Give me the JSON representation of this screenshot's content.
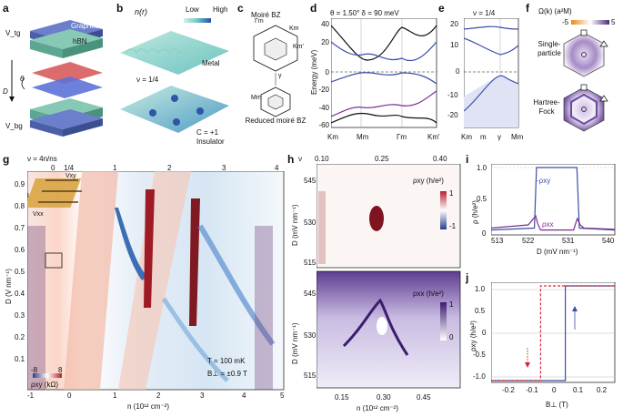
{
  "panel_labels": [
    "a",
    "b",
    "c",
    "d",
    "e",
    "f",
    "g",
    "h",
    "i",
    "j"
  ],
  "a": {
    "top_label": "V_tg",
    "bottom_label": "V_bg",
    "graphite": "Graphite",
    "hbn": "hBN",
    "theta": "θ",
    "D": "D"
  },
  "b": {
    "title": "n(r)",
    "low": "Low",
    "high": "High",
    "metal": "Metal",
    "nu": "ν = 1/4",
    "chern": "C = +1",
    "insulator": "Insulator"
  },
  "c": {
    "title": "Moiré BZ",
    "reduced": "Reduced moiré BZ",
    "points": [
      "Γm",
      "Km",
      "Km'",
      "γ",
      "Mm",
      "κm",
      "σm",
      "m"
    ]
  },
  "d": {
    "header": "θ = 1.50°  δ = 90 meV",
    "ylabel": "Energy (meV)",
    "ytick_labels": [
      "-60",
      "-40",
      "-20",
      "0",
      "20",
      "40"
    ],
    "xtick_labels": [
      "Km",
      "Mm",
      "Γm",
      "Km'"
    ]
  },
  "e": {
    "header": "ν = 1/4",
    "ytick_labels": [
      "-20",
      "-10",
      "0",
      "10",
      "20"
    ],
    "xtick_labels": [
      "Km",
      "m",
      "γ",
      "Mm"
    ]
  },
  "f": {
    "title": "Ω(k) (a²M)",
    "scale_min": "-5",
    "scale_max": "5",
    "single": "Single-particle",
    "hf": "Hartree-Fock"
  },
  "g": {
    "top_axis": "ν = 4n/ns",
    "top_ticks": [
      "0",
      "1/4",
      "1",
      "2",
      "3",
      "4"
    ],
    "ylabel": "D (V nm⁻¹)",
    "yticks": [
      "0.9",
      "0.8",
      "0.7",
      "0.6",
      "0.5",
      "0.4",
      "0.3",
      "0.2",
      "0.1"
    ],
    "xlabel": "n (10¹² cm⁻²)",
    "xticks": [
      "-1",
      "0",
      "1",
      "2",
      "3",
      "4",
      "5"
    ],
    "temperature": "T = 100 mK",
    "field": "B⊥ = ±0.9 T",
    "cbar_label": "ρxy (kΩ)",
    "cbar_min": "-8",
    "cbar_max": "8",
    "device_vxy": "Vxy",
    "device_vxx": "Vxx",
    "device_i": "I"
  },
  "h": {
    "top_axis": "ν",
    "top_ticks": [
      "0.10",
      "0.25",
      "0.40"
    ],
    "ylabel": "D (mV nm⁻¹)",
    "yticks": [
      "545",
      "530",
      "515"
    ],
    "xlabel": "n (10¹² cm⁻²)",
    "xticks": [
      "0.15",
      "0.30",
      "0.45"
    ],
    "top_map_label": "ρxy (h/e²)",
    "top_cbar_max": "1",
    "top_cbar_min": "-1",
    "bottom_map_label": "ρxx (h/e²)",
    "bottom_cbar_max": "1",
    "bottom_cbar_min": "0"
  },
  "i": {
    "ylabel": "ρ (h/e²)",
    "xlabel": "D (mV nm⁻¹)",
    "yticks": [
      "0",
      "0.5",
      "1.0"
    ],
    "xticks": [
      "513",
      "522",
      "531",
      "540"
    ],
    "legend_xy": "-ρxy",
    "legend_xx": "ρxx"
  },
  "j": {
    "ylabel": "ρxy (h/e²)",
    "xlabel": "B⊥ (T)",
    "yticks": [
      "1.0",
      "0.5",
      "0",
      "-0.5",
      "-1.0"
    ],
    "xticks": [
      "-0.2",
      "-0.1",
      "0",
      "0.1",
      "0.2"
    ]
  },
  "colors": {
    "blue": "#3a4fa8",
    "purple": "#7b2d8e",
    "red": "#d9263a",
    "black": "#111111",
    "grid": "#9a9a9a"
  },
  "chart_data": [
    {
      "type": "line",
      "panel": "i",
      "xlim": [
        511,
        541
      ],
      "ylim": [
        0,
        1.0
      ],
      "series": [
        {
          "name": "-ρxy",
          "x": [
            511,
            521.5,
            522,
            531.8,
            532.4,
            541
          ],
          "y": [
            0.02,
            0.05,
            1.0,
            1.0,
            0.05,
            0.02
          ]
        },
        {
          "name": "ρxx",
          "x": [
            511,
            520,
            521.8,
            522.3,
            523,
            531,
            531.9,
            532.6,
            533.5,
            541
          ],
          "y": [
            0.05,
            0.1,
            0.24,
            0.12,
            0.02,
            0.02,
            0.2,
            0.1,
            0.05,
            0.03
          ]
        }
      ]
    },
    {
      "type": "line",
      "panel": "j",
      "xlim": [
        -0.25,
        0.25
      ],
      "ylim": [
        -1.0,
        1.0
      ],
      "series": [
        {
          "x": [
            -0.25,
            0.05,
            0.05,
            0.25
          ],
          "y": [
            -1.0,
            -1.0,
            1.0,
            1.0
          ]
        },
        {
          "x": [
            0.25,
            -0.05,
            -0.05,
            -0.25
          ],
          "y": [
            1.0,
            1.0,
            -1.0,
            -1.0
          ]
        }
      ]
    }
  ]
}
